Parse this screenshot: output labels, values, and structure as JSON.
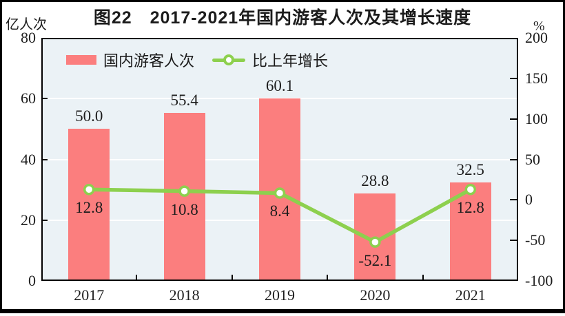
{
  "figure_label": "图22",
  "chart_data": {
    "type": "bar",
    "subtype": "bar-and-line-combo",
    "title": "图22　2017-2021年国内游客人次及其增长速度",
    "categories": [
      "2017",
      "2018",
      "2019",
      "2020",
      "2021"
    ],
    "series": [
      {
        "name": "国内游客人次",
        "type": "bar",
        "axis": "left",
        "unit": "亿人次",
        "values": [
          50.0,
          55.4,
          60.1,
          28.8,
          32.5
        ],
        "labels": [
          "50.0",
          "55.4",
          "60.1",
          "28.8",
          "32.5"
        ],
        "color": "#fb7e7e"
      },
      {
        "name": "比上年增长",
        "type": "line",
        "axis": "right",
        "unit": "%",
        "values": [
          12.8,
          10.8,
          8.4,
          -52.1,
          12.8
        ],
        "labels": [
          "12.8",
          "10.8",
          "8.4",
          "-52.1",
          "12.8"
        ],
        "color": "#8dd04e",
        "marker_fill": "#ffffff",
        "marker_stroke": "#8dd04e"
      }
    ],
    "left_axis": {
      "label": "亿人次",
      "min": 0,
      "max": 80,
      "ticks": [
        0,
        20,
        40,
        60,
        80
      ]
    },
    "right_axis": {
      "label": "%",
      "min": -100,
      "max": 200,
      "ticks": [
        -100,
        -50,
        0,
        50,
        100,
        150,
        200
      ]
    },
    "grid": {
      "horizontal": true,
      "color": "#ffffff",
      "at_left_axis_values": [
        20,
        40,
        60
      ]
    },
    "legend_position": "top-left-inside",
    "plot_background": "#ebf2f6"
  },
  "colors": {
    "bar": "#fb7e7e",
    "line": "#8dd04e",
    "marker_fill": "#ffffff",
    "plot_background": "#ebf2f6",
    "gridline": "#ffffff",
    "text": "#1c1c1c",
    "frame": "#000000"
  }
}
